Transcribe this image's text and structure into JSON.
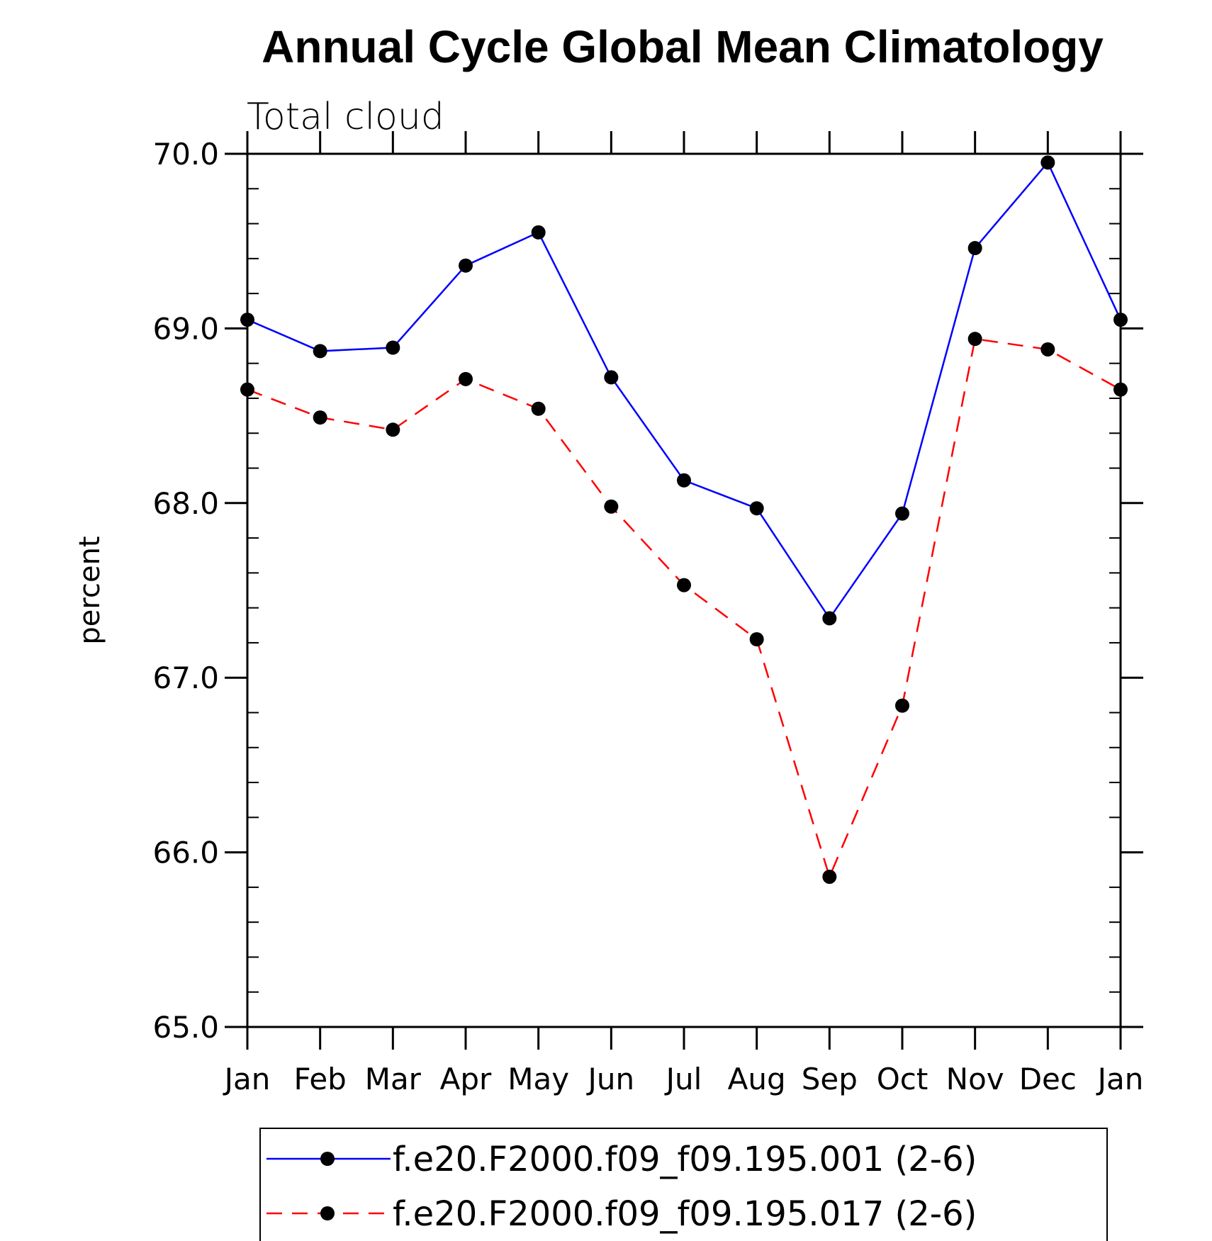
{
  "chart_data": {
    "type": "line",
    "title": "Annual Cycle Global Mean Climatology",
    "subtitle": "Total cloud",
    "xlabel": "",
    "ylabel": "percent",
    "categories": [
      "Jan",
      "Feb",
      "Mar",
      "Apr",
      "May",
      "Jun",
      "Jul",
      "Aug",
      "Sep",
      "Oct",
      "Nov",
      "Dec",
      "Jan"
    ],
    "ylim": [
      65.0,
      70.0
    ],
    "yticks": [
      "65.0",
      "66.0",
      "67.0",
      "68.0",
      "69.0",
      "70.0"
    ],
    "series": [
      {
        "name": "f.e20.F2000.f09_f09.195.001 (2-6)",
        "color": "#0000ff",
        "dash": "solid",
        "values": [
          69.05,
          68.87,
          68.89,
          69.36,
          69.55,
          68.72,
          68.13,
          67.97,
          67.34,
          67.94,
          69.46,
          69.95,
          69.05
        ]
      },
      {
        "name": "f.e20.F2000.f09_f09.195.017 (2-6)",
        "color": "#ff0000",
        "dash": "dashed",
        "values": [
          68.65,
          68.49,
          68.42,
          68.71,
          68.54,
          67.98,
          67.53,
          67.22,
          65.86,
          66.84,
          68.94,
          68.88,
          68.65
        ]
      }
    ]
  }
}
